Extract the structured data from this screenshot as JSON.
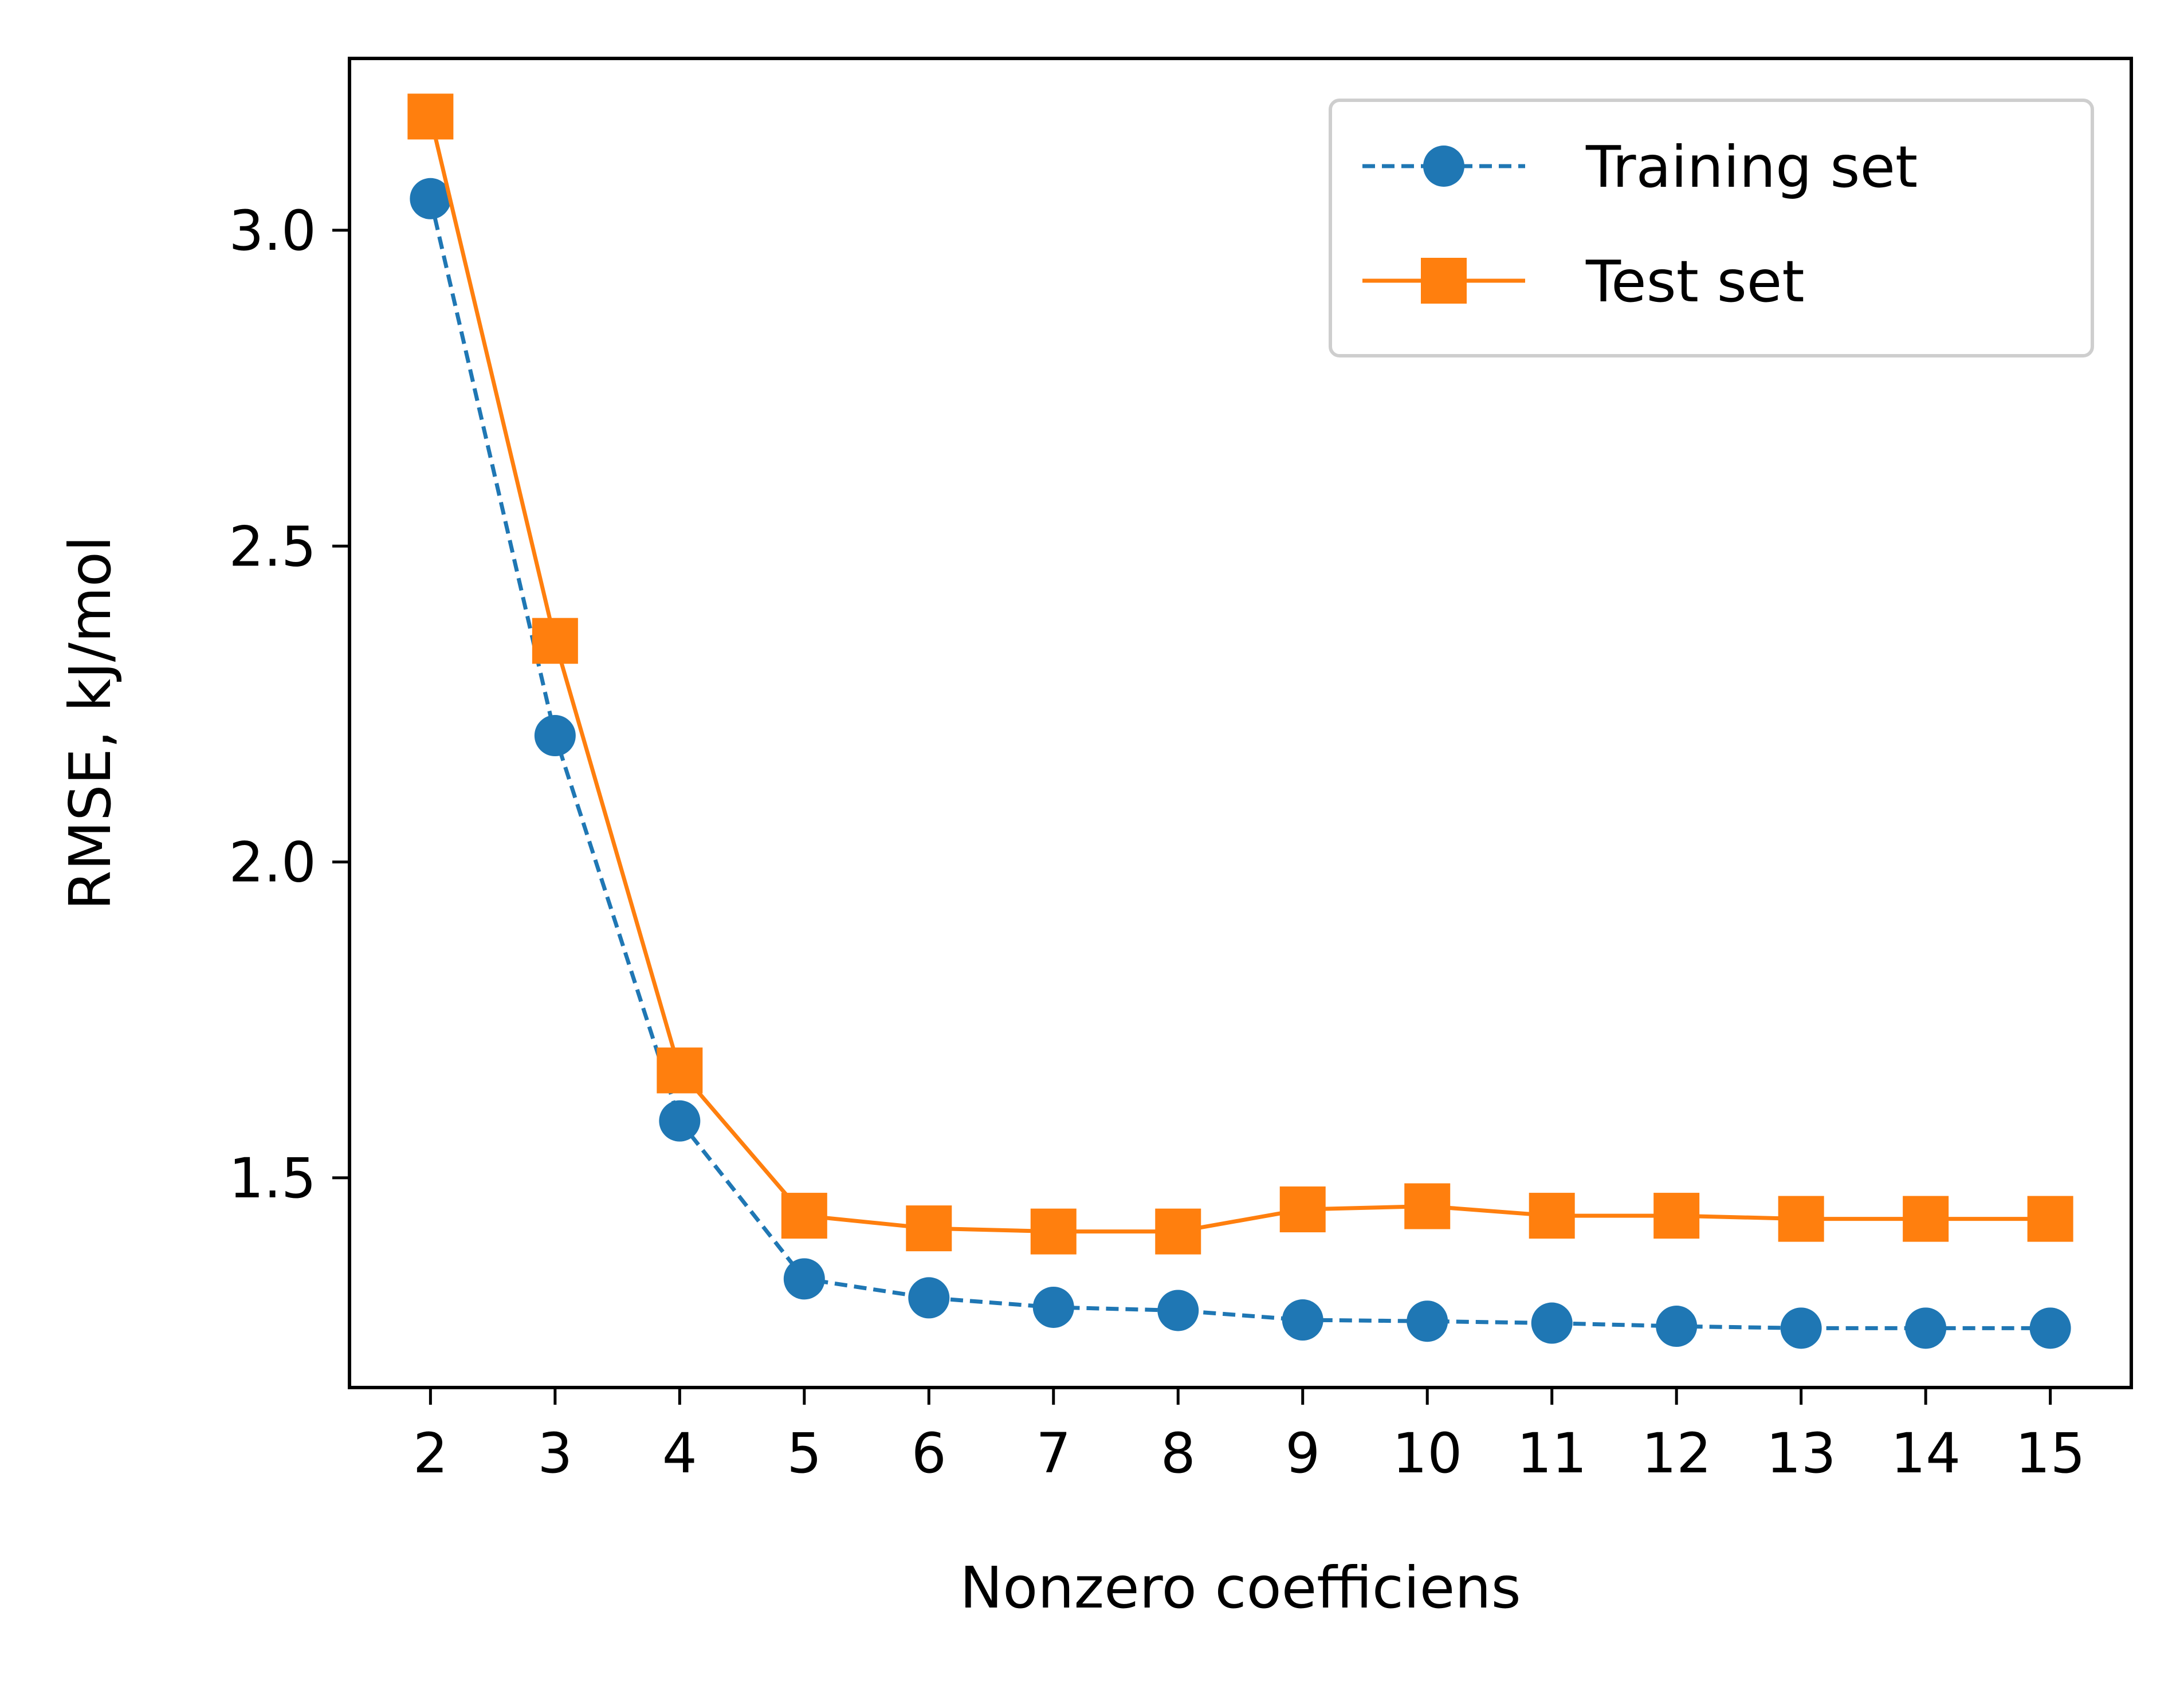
{
  "chart_data": {
    "type": "line",
    "xlabel": "Nonzero coefficiens",
    "ylabel": "RMSE, kJ/mol",
    "x": [
      2,
      3,
      4,
      5,
      6,
      7,
      8,
      9,
      10,
      11,
      12,
      13,
      14,
      15
    ],
    "x_ticks": [
      "2",
      "3",
      "4",
      "5",
      "6",
      "7",
      "8",
      "9",
      "10",
      "11",
      "12",
      "13",
      "14",
      "15"
    ],
    "y_ticks": [
      "1.5",
      "2.0",
      "2.5",
      "3.0"
    ],
    "y_tick_values": [
      1.5,
      2.0,
      2.5,
      3.0
    ],
    "xlim": [
      1.35,
      15.65
    ],
    "ylim": [
      1.168,
      3.272
    ],
    "grid": false,
    "legend_position": "top-right",
    "series": [
      {
        "name": "Training set",
        "color": "#1f77b4",
        "line_style": "dashed",
        "marker": "circle",
        "values": [
          3.05,
          2.2,
          1.59,
          1.34,
          1.31,
          1.295,
          1.29,
          1.275,
          1.273,
          1.27,
          1.265,
          1.262,
          1.262,
          1.262
        ]
      },
      {
        "name": "Test set",
        "color": "#ff7f0e",
        "line_style": "solid",
        "marker": "square",
        "values": [
          3.18,
          2.35,
          1.67,
          1.44,
          1.42,
          1.415,
          1.415,
          1.45,
          1.455,
          1.44,
          1.44,
          1.435,
          1.435,
          1.435
        ]
      }
    ]
  }
}
